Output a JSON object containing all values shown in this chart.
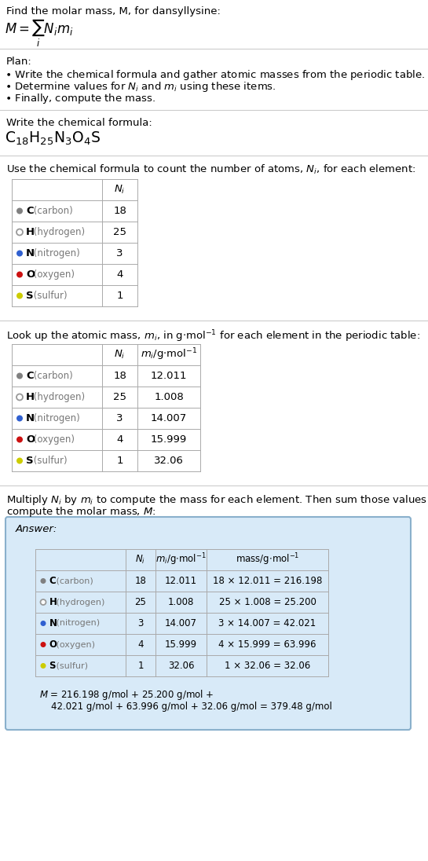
{
  "title_line1": "Find the molar mass, M, for dansyllysine:",
  "formula_label": "Write the chemical formula:",
  "plan_header": "Plan:",
  "plan_bullets": [
    "• Write the chemical formula and gather atomic masses from the periodic table.",
    "• Determine values for $N_i$ and $m_i$ using these items.",
    "• Finally, compute the mass."
  ],
  "table1_header": "Use the chemical formula to count the number of atoms, $N_i$, for each element:",
  "table2_header": "Look up the atomic mass, $m_i$, in g·mol$^{-1}$ for each element in the periodic table:",
  "table3_header_line1": "Multiply $N_i$ by $m_i$ to compute the mass for each element. Then sum those values to",
  "table3_header_line2": "compute the molar mass, $M$:",
  "elements": [
    "C (carbon)",
    "H (hydrogen)",
    "N (nitrogen)",
    "O (oxygen)",
    "S (sulfur)"
  ],
  "element_symbols": [
    "C",
    "H",
    "N",
    "O",
    "S"
  ],
  "dot_colors": [
    "#808080",
    "none",
    "#3060d0",
    "#cc1111",
    "#cccc00"
  ],
  "dot_edge_colors": [
    "#808080",
    "#999999",
    "#3060d0",
    "#cc1111",
    "#cccc00"
  ],
  "Ni": [
    18,
    25,
    3,
    4,
    1
  ],
  "mi_str": [
    "12.011",
    "1.008",
    "14.007",
    "15.999",
    "32.06"
  ],
  "mass_str": [
    "18 × 12.011 = 216.198",
    "25 × 1.008 = 25.200",
    "3 × 14.007 = 42.021",
    "4 × 15.999 = 63.996",
    "1 × 32.06 = 32.06"
  ],
  "final_line1": "$M$ = 216.198 g/mol + 25.200 g/mol +",
  "final_line2": "42.021 g/mol + 63.996 g/mol + 32.06 g/mol = 379.48 g/mol",
  "answer_label": "Answer:",
  "bg_color": "#ffffff",
  "text_color": "#000000",
  "table_border_color": "#aaaaaa",
  "answer_box_bg": "#ddeeff",
  "answer_box_border": "#aabbcc",
  "separator_color": "#cccccc"
}
